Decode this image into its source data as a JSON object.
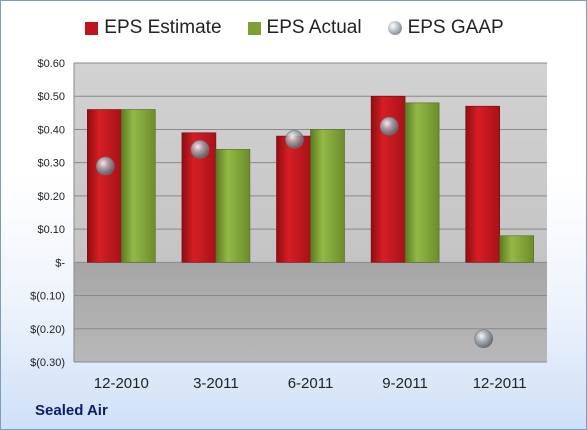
{
  "company": "Sealed Air",
  "colors": {
    "estimate": "#c0141b",
    "actual": "#7ea033",
    "gaap": "#9aa3ad"
  },
  "chart_data": {
    "type": "bar",
    "categories": [
      "12-2010",
      "3-2011",
      "6-2011",
      "9-2011",
      "12-2011"
    ],
    "series": [
      {
        "name": "EPS Estimate",
        "values": [
          0.46,
          0.39,
          0.38,
          0.5,
          0.47
        ],
        "style": "bar"
      },
      {
        "name": "EPS Actual",
        "values": [
          0.46,
          0.34,
          0.4,
          0.48,
          0.08
        ],
        "style": "bar"
      },
      {
        "name": "EPS GAAP",
        "values": [
          0.29,
          0.34,
          0.37,
          0.41,
          -0.23
        ],
        "style": "marker"
      }
    ],
    "ylim": [
      -0.3,
      0.6
    ],
    "yticks": [
      0.6,
      0.5,
      0.4,
      0.3,
      0.2,
      0.1,
      0,
      -0.1,
      -0.2,
      -0.3
    ],
    "ytick_labels": [
      "$0.60",
      "$0.50",
      "$0.40",
      "$0.30",
      "$0.20",
      "$0.10",
      "$-",
      "$(0.10)",
      "$(0.20)",
      "$(0.30)"
    ],
    "grid": true,
    "legend": "top"
  }
}
